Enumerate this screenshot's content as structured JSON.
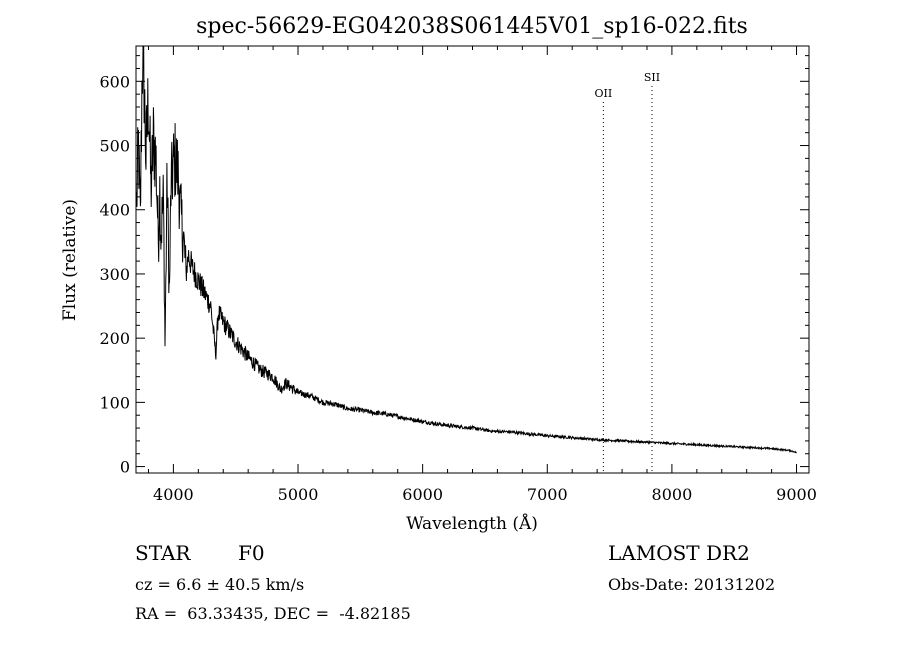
{
  "chart_data": {
    "type": "line",
    "title": "spec-56629-EG042038S061445V01_sp16-022.fits",
    "xlabel": "Wavelength (Å)",
    "ylabel": "Flux (relative)",
    "xlim": [
      3700,
      9100
    ],
    "ylim": [
      -10,
      655
    ],
    "xticks": [
      4000,
      5000,
      6000,
      7000,
      8000,
      9000
    ],
    "xtick_labels": [
      "4000",
      "5000",
      "6000",
      "7000",
      "8000",
      "9000"
    ],
    "yticks": [
      0,
      100,
      200,
      300,
      400,
      500,
      600
    ],
    "ytick_labels": [
      "0",
      "100",
      "200",
      "300",
      "400",
      "500",
      "600"
    ],
    "grid": false,
    "series": [
      {
        "x": [
          3705,
          3720,
          3735,
          3750,
          3765,
          3780,
          3800,
          3820,
          3840,
          3860,
          3880,
          3890,
          3900,
          3920,
          3933,
          3950,
          3968,
          3980,
          4000,
          4020,
          4040,
          4060,
          4080,
          4101,
          4120,
          4150,
          4200,
          4250,
          4300,
          4340,
          4360,
          4400,
          4450,
          4500,
          4600,
          4700,
          4800,
          4861,
          4900,
          5000,
          5100,
          5200,
          5300,
          5400,
          5500,
          5600,
          5700,
          5800,
          5900,
          6000,
          6200,
          6400,
          6563,
          6700,
          7000,
          7200,
          7400,
          7600,
          7800,
          8000,
          8200,
          8400,
          8600,
          8800,
          8950,
          9000
        ],
        "y": [
          410,
          500,
          380,
          640,
          600,
          480,
          580,
          430,
          510,
          480,
          350,
          440,
          360,
          420,
          190,
          450,
          260,
          430,
          470,
          480,
          450,
          390,
          360,
          300,
          330,
          310,
          290,
          270,
          250,
          175,
          240,
          225,
          210,
          195,
          170,
          150,
          140,
          120,
          130,
          115,
          110,
          100,
          97,
          90,
          88,
          84,
          82,
          78,
          74,
          70,
          64,
          60,
          55,
          54,
          48,
          45,
          42,
          40,
          38,
          36,
          34,
          32,
          30,
          28,
          25,
          22
        ]
      }
    ],
    "annotations": [
      {
        "label": "OII",
        "x": 7450
      },
      {
        "label": "SII",
        "x": 7840
      }
    ]
  },
  "info": {
    "object_class": "STAR",
    "subclass": "F0",
    "survey": "LAMOST DR2",
    "velocity": "cz = 6.6 ± 40.5 km/s",
    "obs_date": "Obs-Date: 20131202",
    "coords": "RA =  63.33435, DEC =  -4.82185"
  }
}
